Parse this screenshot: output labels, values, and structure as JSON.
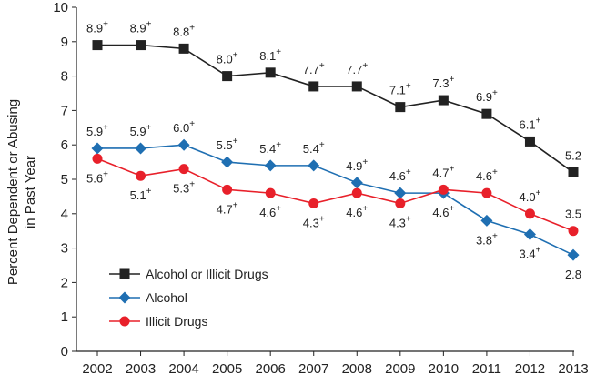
{
  "chart_data": {
    "type": "line",
    "title": "",
    "xlabel": "",
    "ylabel": "Percent Dependent or Abusing in Past Year",
    "ylabel_lines": [
      "Percent Dependent or Abusing",
      "in Past Year"
    ],
    "ylim": [
      0,
      10
    ],
    "yticks": [
      "0",
      "1",
      "2",
      "3",
      "4",
      "5",
      "6",
      "7",
      "8",
      "9",
      "10"
    ],
    "categories": [
      "2002",
      "2003",
      "2004",
      "2005",
      "2006",
      "2007",
      "2008",
      "2009",
      "2010",
      "2011",
      "2012",
      "2013"
    ],
    "grid": false,
    "legend_position": "lower-left",
    "significance_marker": "+",
    "series": [
      {
        "name": "Alcohol or Illicit Drugs",
        "color": "#222222",
        "marker": "square",
        "values": [
          8.9,
          8.9,
          8.8,
          8.0,
          8.1,
          7.7,
          7.7,
          7.1,
          7.3,
          6.9,
          6.1,
          5.2
        ],
        "labels": [
          "8.9",
          "8.9",
          "8.8",
          "8.0",
          "8.1",
          "7.7",
          "7.7",
          "7.1",
          "7.3",
          "6.9",
          "6.1",
          "5.2"
        ],
        "significant": [
          true,
          true,
          true,
          true,
          true,
          true,
          true,
          true,
          true,
          true,
          true,
          false
        ],
        "label_side": [
          "above",
          "above",
          "above",
          "above",
          "above",
          "above",
          "above",
          "above",
          "above",
          "above",
          "above",
          "above"
        ]
      },
      {
        "name": "Alcohol",
        "color": "#1f6fb2",
        "marker": "diamond",
        "values": [
          5.9,
          5.9,
          6.0,
          5.5,
          5.4,
          5.4,
          4.9,
          4.6,
          4.6,
          3.8,
          3.4,
          2.8
        ],
        "labels": [
          "5.9",
          "5.9",
          "6.0",
          "5.5",
          "5.4",
          "5.4",
          "4.9",
          "4.6",
          "4.6",
          "3.8",
          "3.4",
          "2.8"
        ],
        "significant": [
          true,
          true,
          true,
          true,
          true,
          true,
          true,
          true,
          true,
          true,
          true,
          false
        ],
        "label_side": [
          "above",
          "above",
          "above",
          "above",
          "above",
          "above",
          "above",
          "above",
          "below",
          "below",
          "below",
          "below"
        ]
      },
      {
        "name": "Illicit Drugs",
        "color": "#e8202a",
        "marker": "circle",
        "values": [
          5.6,
          5.1,
          5.3,
          4.7,
          4.6,
          4.3,
          4.6,
          4.3,
          4.7,
          4.6,
          4.0,
          3.5
        ],
        "labels": [
          "5.6",
          "5.1",
          "5.3",
          "4.7",
          "4.6",
          "4.3",
          "4.6",
          "4.3",
          "4.7",
          "4.6",
          "4.0",
          "3.5"
        ],
        "significant": [
          true,
          true,
          true,
          true,
          true,
          true,
          true,
          true,
          true,
          true,
          true,
          false
        ],
        "label_side": [
          "below",
          "below",
          "below",
          "below",
          "below",
          "below",
          "below",
          "below",
          "above",
          "above",
          "above",
          "above"
        ]
      }
    ]
  }
}
